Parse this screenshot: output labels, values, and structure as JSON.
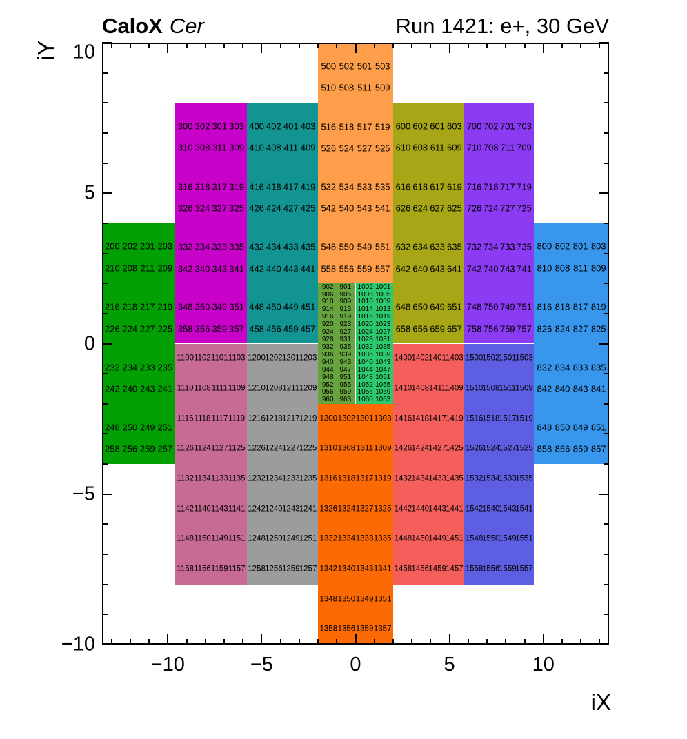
{
  "header": {
    "experiment": "CaloX",
    "detector": "Cer",
    "run_title": "Run 1421: e+, 30 GeV"
  },
  "axes": {
    "x_label": "iX",
    "y_label": "iY",
    "x_range": [
      -13.5,
      13.5
    ],
    "y_range": [
      -10,
      10
    ],
    "x_ticks": [
      {
        "v": -10,
        "label": "−10"
      },
      {
        "v": -5,
        "label": "−5"
      },
      {
        "v": 0,
        "label": "0"
      },
      {
        "v": 5,
        "label": "5"
      },
      {
        "v": 10,
        "label": "10"
      }
    ],
    "y_ticks": [
      {
        "v": 10,
        "label": "10"
      },
      {
        "v": 5,
        "label": "5"
      },
      {
        "v": 0,
        "label": "0"
      },
      {
        "v": -5,
        "label": "−5"
      },
      {
        "v": -10,
        "label": "−10"
      }
    ],
    "axis_color": "#000000"
  },
  "chart_data": {
    "type": "heatmap",
    "title": "CaloX Cer channel map, Run 1421: e+, 30 GeV",
    "xlabel": "iX",
    "ylabel": "iY",
    "xlim": [
      -13.5,
      13.5
    ],
    "ylim": [
      -10,
      10
    ],
    "grid": false,
    "legend": "none",
    "regions": [
      {
        "name": "ch200-block",
        "color": "#02A002",
        "x0": -13.5,
        "x1": -9.6,
        "yTop": 4,
        "yBot": -4,
        "spacing": "paired",
        "fontPx": 13,
        "rows": [
          [
            200,
            202,
            201,
            203
          ],
          [
            210,
            208,
            211,
            209
          ],
          [
            216,
            218,
            217,
            219
          ],
          [
            226,
            224,
            227,
            225
          ],
          [
            232,
            234,
            233,
            235
          ],
          [
            242,
            240,
            243,
            241
          ],
          [
            248,
            250,
            249,
            251
          ],
          [
            258,
            256,
            259,
            257
          ]
        ]
      },
      {
        "name": "ch300-block",
        "color": "#C802C8",
        "x0": -9.6,
        "x1": -5.8,
        "yTop": 8,
        "yBot": 0,
        "spacing": "paired",
        "fontPx": 13,
        "rows": [
          [
            300,
            302,
            301,
            303
          ],
          [
            310,
            308,
            311,
            309
          ],
          [
            316,
            318,
            317,
            319
          ],
          [
            326,
            324,
            327,
            325
          ],
          [
            332,
            334,
            333,
            335
          ],
          [
            342,
            340,
            343,
            341
          ],
          [
            348,
            350,
            349,
            351
          ],
          [
            358,
            356,
            359,
            357
          ]
        ]
      },
      {
        "name": "ch400-block",
        "color": "#129492",
        "x0": -5.8,
        "x1": -2,
        "yTop": 8,
        "yBot": 0,
        "spacing": "paired",
        "fontPx": 13,
        "rows": [
          [
            400,
            402,
            401,
            403
          ],
          [
            410,
            408,
            411,
            409
          ],
          [
            416,
            418,
            417,
            419
          ],
          [
            426,
            424,
            427,
            425
          ],
          [
            432,
            434,
            433,
            435
          ],
          [
            442,
            440,
            443,
            441
          ],
          [
            448,
            450,
            449,
            451
          ],
          [
            458,
            456,
            459,
            457
          ]
        ]
      },
      {
        "name": "ch500-block",
        "color": "#FF9E4A",
        "x0": -2,
        "x1": 2,
        "yTop": 10,
        "yBot": 2,
        "spacing": "paired",
        "fontPx": 13,
        "rows": [
          [
            500,
            502,
            501,
            503
          ],
          [
            510,
            508,
            511,
            509
          ],
          [
            516,
            518,
            517,
            519
          ],
          [
            526,
            524,
            527,
            525
          ],
          [
            532,
            534,
            533,
            535
          ],
          [
            542,
            540,
            543,
            541
          ],
          [
            548,
            550,
            549,
            551
          ],
          [
            558,
            556,
            559,
            557
          ]
        ]
      },
      {
        "name": "ch600-block",
        "color": "#A6A616",
        "x0": 2,
        "x1": 5.8,
        "yTop": 8,
        "yBot": 0,
        "spacing": "paired",
        "fontPx": 13,
        "rows": [
          [
            600,
            602,
            601,
            603
          ],
          [
            610,
            608,
            611,
            609
          ],
          [
            616,
            618,
            617,
            619
          ],
          [
            626,
            624,
            627,
            625
          ],
          [
            632,
            634,
            633,
            635
          ],
          [
            642,
            640,
            643,
            641
          ],
          [
            648,
            650,
            649,
            651
          ],
          [
            658,
            656,
            659,
            657
          ]
        ]
      },
      {
        "name": "ch700-block",
        "color": "#8C3BF4",
        "x0": 5.8,
        "x1": 9.5,
        "yTop": 8,
        "yBot": 0,
        "spacing": "paired",
        "fontPx": 13,
        "rows": [
          [
            700,
            702,
            701,
            703
          ],
          [
            710,
            708,
            711,
            709
          ],
          [
            716,
            718,
            717,
            719
          ],
          [
            726,
            724,
            727,
            725
          ],
          [
            732,
            734,
            733,
            735
          ],
          [
            742,
            740,
            743,
            741
          ],
          [
            748,
            750,
            749,
            751
          ],
          [
            758,
            756,
            759,
            757
          ]
        ]
      },
      {
        "name": "ch800-block",
        "color": "#3896EC",
        "x0": 9.5,
        "x1": 13.5,
        "yTop": 4,
        "yBot": -4,
        "spacing": "paired",
        "fontPx": 13,
        "rows": [
          [
            800,
            802,
            801,
            803
          ],
          [
            810,
            808,
            811,
            809
          ],
          [
            816,
            818,
            817,
            819
          ],
          [
            826,
            824,
            827,
            825
          ],
          [
            832,
            834,
            833,
            835
          ],
          [
            842,
            840,
            843,
            841
          ],
          [
            848,
            850,
            849,
            851
          ],
          [
            858,
            856,
            859,
            857
          ]
        ]
      },
      {
        "name": "ch900-block",
        "color": "#67A33E",
        "x0": -2,
        "x1": 0,
        "yTop": 2,
        "yBot": -2,
        "spacing": "even",
        "fontPx": 10,
        "rows": [
          [
            902,
            901
          ],
          [
            906,
            905
          ],
          [
            910,
            909
          ],
          [
            914,
            913
          ],
          [
            916,
            919
          ],
          [
            920,
            923
          ],
          [
            924,
            927
          ],
          [
            928,
            931
          ],
          [
            932,
            935
          ],
          [
            936,
            939
          ],
          [
            940,
            943
          ],
          [
            944,
            947
          ],
          [
            948,
            951
          ],
          [
            952,
            955
          ],
          [
            956,
            959
          ],
          [
            960,
            963
          ]
        ]
      },
      {
        "name": "ch1000-block",
        "color": "#2CC96F",
        "x0": 0,
        "x1": 2,
        "yTop": 2,
        "yBot": -2,
        "spacing": "even",
        "fontPx": 10,
        "rows": [
          [
            1002,
            1001
          ],
          [
            1006,
            1005
          ],
          [
            1010,
            1009
          ],
          [
            1014,
            1013
          ],
          [
            1016,
            1019
          ],
          [
            1020,
            1023
          ],
          [
            1024,
            1027
          ],
          [
            1028,
            1031
          ],
          [
            1032,
            1035
          ],
          [
            1036,
            1039
          ],
          [
            1040,
            1043
          ],
          [
            1044,
            1047
          ],
          [
            1048,
            1051
          ],
          [
            1052,
            1055
          ],
          [
            1056,
            1059
          ],
          [
            1060,
            1063
          ]
        ]
      },
      {
        "name": "ch1100-block",
        "color": "#C76B94",
        "x0": -9.6,
        "x1": -5.8,
        "yTop": 0,
        "yBot": -8,
        "spacing": "even",
        "fontPx": 11.5,
        "rows": [
          [
            1100,
            1102,
            1101,
            1103
          ],
          [
            1110,
            1108,
            1111,
            1109
          ],
          [
            1116,
            1118,
            1117,
            1119
          ],
          [
            1126,
            1124,
            1127,
            1125
          ],
          [
            1132,
            1134,
            1133,
            1135
          ],
          [
            1142,
            1140,
            1143,
            1141
          ],
          [
            1148,
            1150,
            1149,
            1151
          ],
          [
            1158,
            1156,
            1159,
            1157
          ]
        ]
      },
      {
        "name": "ch1200-block",
        "color": "#9C9C9C",
        "x0": -5.8,
        "x1": -2,
        "yTop": 0,
        "yBot": -8,
        "spacing": "even",
        "fontPx": 11.5,
        "rows": [
          [
            1200,
            1202,
            1201,
            1203
          ],
          [
            1210,
            1208,
            1211,
            1209
          ],
          [
            1216,
            1218,
            1217,
            1219
          ],
          [
            1226,
            1224,
            1227,
            1225
          ],
          [
            1232,
            1234,
            1233,
            1235
          ],
          [
            1242,
            1240,
            1243,
            1241
          ],
          [
            1248,
            1250,
            1249,
            1251
          ],
          [
            1258,
            1256,
            1259,
            1257
          ]
        ]
      },
      {
        "name": "ch1300-block",
        "color": "#FC6A05",
        "x0": -2,
        "x1": 2,
        "yTop": -2,
        "yBot": -10,
        "spacing": "even",
        "fontPx": 11.5,
        "rows": [
          [
            1300,
            1302,
            1301,
            1303
          ],
          [
            1310,
            1308,
            1311,
            1309
          ],
          [
            1316,
            1318,
            1317,
            1319
          ],
          [
            1326,
            1324,
            1327,
            1325
          ],
          [
            1332,
            1334,
            1333,
            1335
          ],
          [
            1342,
            1340,
            1343,
            1341
          ],
          [
            1348,
            1350,
            1349,
            1351
          ],
          [
            1358,
            1356,
            1359,
            1357
          ]
        ]
      },
      {
        "name": "ch1400-block",
        "color": "#F45F5C",
        "x0": 2,
        "x1": 5.8,
        "yTop": 0,
        "yBot": -8,
        "spacing": "even",
        "fontPx": 11.5,
        "rows": [
          [
            1400,
            1402,
            1401,
            1403
          ],
          [
            1410,
            1408,
            1411,
            1409
          ],
          [
            1416,
            1418,
            1417,
            1419
          ],
          [
            1426,
            1424,
            1427,
            1425
          ],
          [
            1432,
            1434,
            1433,
            1435
          ],
          [
            1442,
            1440,
            1443,
            1441
          ],
          [
            1448,
            1450,
            1449,
            1451
          ],
          [
            1458,
            1456,
            1459,
            1457
          ]
        ]
      },
      {
        "name": "ch1500-block",
        "color": "#5E5EE2",
        "x0": 5.8,
        "x1": 9.5,
        "yTop": 0,
        "yBot": -8,
        "spacing": "even",
        "fontPx": 11.5,
        "rows": [
          [
            1500,
            1502,
            1501,
            1503
          ],
          [
            1510,
            1508,
            1511,
            1509
          ],
          [
            1516,
            1518,
            1517,
            1519
          ],
          [
            1526,
            1524,
            1527,
            1525
          ],
          [
            1532,
            1534,
            1533,
            1535
          ],
          [
            1542,
            1540,
            1543,
            1541
          ],
          [
            1548,
            1550,
            1549,
            1551
          ],
          [
            1558,
            1556,
            1559,
            1557
          ]
        ]
      }
    ]
  }
}
